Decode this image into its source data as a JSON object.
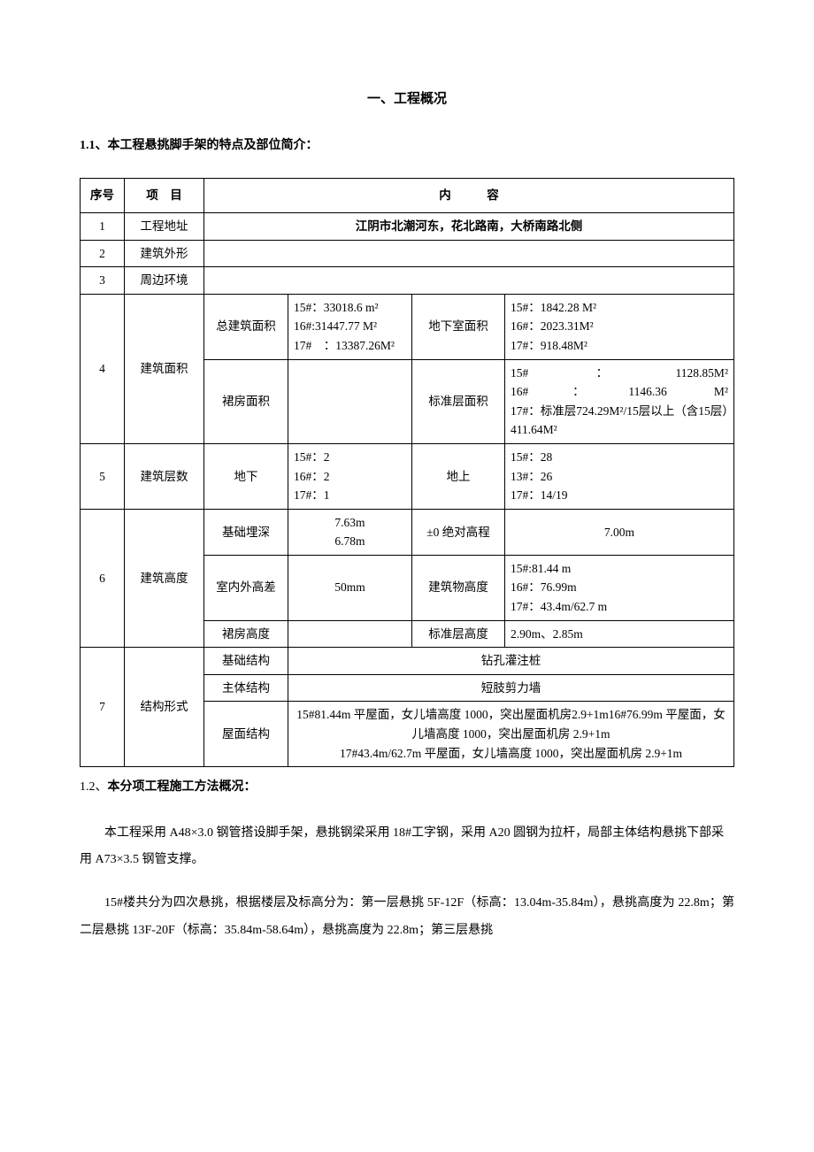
{
  "title": "一、工程概况",
  "section_1_1": "1.1、本工程悬挑脚手架的特点及部位简介：",
  "section_1_2": "1.2、本分项工程施工方法概况：",
  "table": {
    "header": {
      "seq": "序号",
      "item": "项　目",
      "content": "内　　　容"
    },
    "r1": {
      "seq": "1",
      "item": "工程地址",
      "content": "江阴市北潮河东，花北路南，大桥南路北侧"
    },
    "r2": {
      "seq": "2",
      "item": "建筑外形",
      "content": ""
    },
    "r3": {
      "seq": "3",
      "item": "周边环境",
      "content": ""
    },
    "r4": {
      "seq": "4",
      "item": "建筑面积",
      "sub1": "总建筑面积",
      "v1a": "15#：33018.6 m²\n16#:31447.77 M²\n17#　：13387.26M²",
      "v2a": "地下室面积",
      "v3a": "15#：1842.28 M²\n16#：2023.31M²\n17#：918.48M²",
      "sub2": "裙房面积",
      "v1b": "",
      "v2b": "标准层面积",
      "v3b": "15#：1128.85M²\n16#：1146.36 M²\n17#：标准层724.29M²/15层以上（含15层）411.64M²"
    },
    "r5": {
      "seq": "5",
      "item": "建筑层数",
      "sub1": "地下",
      "v1a": "15#：2\n16#：2\n17#：1",
      "v2a": "地上",
      "v3a": "15#：28\n13#：26\n17#：14/19"
    },
    "r6": {
      "seq": "6",
      "item": "建筑高度",
      "sub1": "基础埋深",
      "v1a": "7.63m\n6.78m",
      "v2a": "±0 绝对高程",
      "v3a": "7.00m",
      "sub2": "室内外高差",
      "v1b": "50mm",
      "v2b": "建筑物高度",
      "v3b": "15#:81.44 m\n16#：76.99m\n17#：43.4m/62.7 m",
      "sub3": "裙房高度",
      "v1c": "",
      "v2c": "标准层高度",
      "v3c": "2.90m、2.85m"
    },
    "r7": {
      "seq": "7",
      "item": "结构形式",
      "sub1": "基础结构",
      "v1a": "钻孔灌注桩",
      "sub2": "主体结构",
      "v1b": "短肢剪力墙",
      "sub3": "屋面结构",
      "v1c": "15#81.44m 平屋面，女儿墙高度 1000，突出屋面机房2.9+1m16#76.99m 平屋面，女儿墙高度 1000，突出屋面机房 2.9+1m\n17#43.4m/62.7m 平屋面，女儿墙高度 1000，突出屋面机房 2.9+1m"
    }
  },
  "para1": "本工程采用 A48×3.0 钢管搭设脚手架，悬挑钢梁采用 18#工字钢，采用 A20 圆钢为拉杆，局部主体结构悬挑下部采用 A73×3.5 钢管支撑。",
  "para2": "15#楼共分为四次悬挑，根据楼层及标高分为：第一层悬挑 5F-12F（标高：13.04m-35.84m），悬挑高度为 22.8m；第二层悬挑 13F-20F（标高：35.84m-58.64m），悬挑高度为 22.8m；第三层悬挑"
}
